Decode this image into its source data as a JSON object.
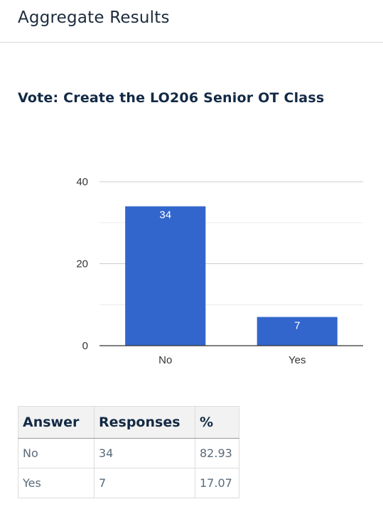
{
  "header": {
    "title": "Aggregate Results"
  },
  "vote": {
    "title": "Vote: Create the LO206 Senior OT Class"
  },
  "chart_data": {
    "type": "bar",
    "title": "",
    "xlabel": "",
    "ylabel": "",
    "categories": [
      "No",
      "Yes"
    ],
    "values": [
      34,
      7
    ],
    "data_labels": [
      "34",
      "7"
    ],
    "ylim": [
      0,
      40
    ],
    "yticks": [
      0,
      20,
      40
    ],
    "yticks_labels": [
      "0",
      "20",
      "40"
    ],
    "grid": true,
    "bar_color": "#3366cc"
  },
  "table": {
    "headers": [
      "Answer",
      "Responses",
      "%"
    ],
    "rows": [
      [
        "No",
        "34",
        "82.93"
      ],
      [
        "Yes",
        "7",
        "17.07"
      ]
    ]
  }
}
